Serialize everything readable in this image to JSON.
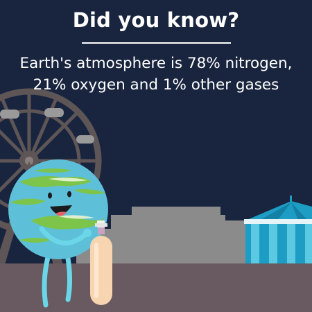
{
  "heading": "Did you know?",
  "fact": {
    "line1": "Earth's atmosphere is 78% nitrogen,",
    "line2": "21% oxygen and 1% other gases"
  },
  "colors": {
    "sky": "#19253e",
    "ground": "#685a60",
    "building": "#8b8b8c",
    "ferris_wheel": "#5e5556",
    "gondola": "#9a9a9b",
    "ocean": "#5ec0d8",
    "land": "#7cc44a",
    "tent_light": "#1d9cc4",
    "tent_dark": "#1380a6",
    "tank": "#f8d5b1"
  }
}
